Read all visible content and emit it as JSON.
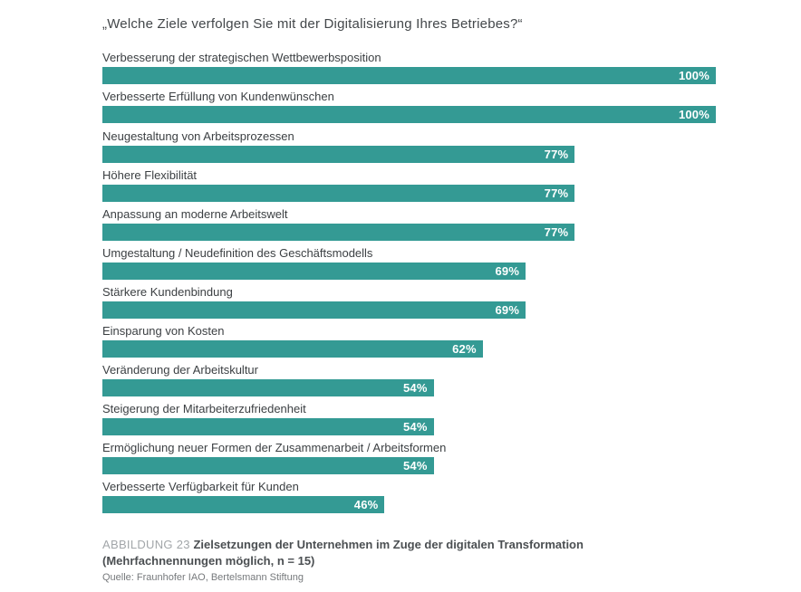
{
  "chart_data": {
    "type": "bar",
    "orientation": "horizontal",
    "title": "„Welche Ziele verfolgen Sie mit der Digitalisierung Ihres Betriebes?“",
    "categories": [
      "Verbesserung der strategischen Wettbewerbsposition",
      "Verbesserte Erfüllung von Kundenwünschen",
      "Neugestaltung von Arbeitsprozessen",
      "Höhere Flexibilität",
      "Anpassung an moderne Arbeitswelt",
      "Umgestaltung / Neudefinition des Geschäftsmodells",
      "Stärkere Kundenbindung",
      "Einsparung von Kosten",
      "Veränderung der Arbeitskultur",
      "Steigerung der Mitarbeiterzufriedenheit",
      "Ermöglichung neuer Formen der Zusammenarbeit / Arbeitsformen",
      "Verbesserte Verfügbarkeit für Kunden"
    ],
    "values": [
      100,
      100,
      77,
      77,
      77,
      69,
      69,
      62,
      54,
      54,
      54,
      46
    ],
    "value_labels": [
      "100%",
      "100%",
      "77%",
      "77%",
      "77%",
      "69%",
      "69%",
      "62%",
      "54%",
      "54%",
      "54%",
      "46%"
    ],
    "xlim": [
      0,
      100
    ],
    "grid": false,
    "legend": false,
    "bar_color": "#349a94",
    "value_label_color": "#ffffff",
    "category_label_color": "#3c4043"
  },
  "caption": {
    "figure_label": "ABBILDUNG 23",
    "title_bold_line1": "Zielsetzungen der Unternehmen im Zuge der digitalen Transformation",
    "title_bold_line2": "(Mehrfachnennungen möglich, n = 15)",
    "source": "Quelle: Fraunhofer IAO, Bertelsmann Stiftung"
  }
}
